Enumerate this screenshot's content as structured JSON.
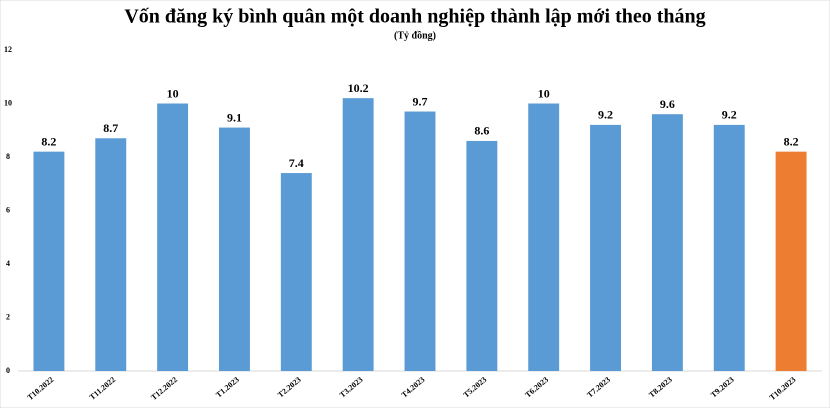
{
  "chart_data": {
    "type": "bar",
    "title": "Vốn đăng ký bình quân một doanh nghiệp thành lập mới theo tháng",
    "subtitle": "(Tỷ đồng)",
    "categories": [
      "T10.2022",
      "T11.2022",
      "T12.2022",
      "T1.2023",
      "T2.2023",
      "T3.2023",
      "T4.2023",
      "T5.2023",
      "T6.2023",
      "T7.2023",
      "T8.2023",
      "T9.2023",
      "T10.2023"
    ],
    "values": [
      8.2,
      8.7,
      10,
      9.1,
      7.4,
      10.2,
      9.7,
      8.6,
      10,
      9.2,
      9.6,
      9.2,
      8.2
    ],
    "colors": [
      "#5b9bd5",
      "#5b9bd5",
      "#5b9bd5",
      "#5b9bd5",
      "#5b9bd5",
      "#5b9bd5",
      "#5b9bd5",
      "#5b9bd5",
      "#5b9bd5",
      "#5b9bd5",
      "#5b9bd5",
      "#5b9bd5",
      "#ed7d31"
    ],
    "ylim": [
      0,
      12
    ],
    "yticks": [
      0,
      2,
      4,
      6,
      8,
      10,
      12
    ],
    "grid": false
  }
}
